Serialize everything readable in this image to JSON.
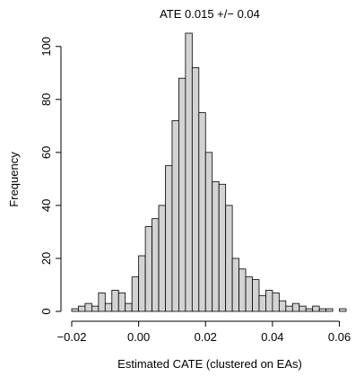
{
  "chart_data": {
    "type": "histogram",
    "title": "ATE 0.015 +/− 0.04",
    "x_label": "Estimated CATE (clustered on EAs)",
    "y_label": "Frequency",
    "bins": [
      -0.02,
      -0.018,
      -0.016,
      -0.014,
      -0.012,
      -0.01,
      -0.008,
      -0.006,
      -0.004,
      -0.002,
      0,
      0.002,
      0.004,
      0.006,
      0.008,
      0.01,
      0.012,
      0.014,
      0.016,
      0.018,
      0.02,
      0.022,
      0.024,
      0.026,
      0.028,
      0.03,
      0.032,
      0.034,
      0.036,
      0.038,
      0.04,
      0.042,
      0.044,
      0.046,
      0.048,
      0.05,
      0.052,
      0.054,
      0.056,
      0.058,
      0.06,
      0.062
    ],
    "values": [
      1,
      2,
      3,
      2,
      7,
      3,
      8,
      7,
      3,
      13,
      21,
      32,
      35,
      40,
      55,
      72,
      88,
      105,
      92,
      75,
      60,
      49,
      48,
      40,
      20,
      16,
      13,
      12,
      6,
      8,
      7,
      4,
      2,
      3,
      2,
      1,
      2,
      1,
      1,
      0,
      1
    ],
    "color": "#d3d3d3",
    "xlim": [
      -0.02,
      0.062
    ],
    "xticks": [
      {
        "value": -0.02,
        "label": "−0.02"
      },
      {
        "value": 0,
        "label": "0.00"
      },
      0.02,
      0.04,
      0.06
    ],
    "ylim": [
      0,
      105
    ],
    "yticks": [
      0,
      20,
      40,
      60,
      80,
      100
    ]
  }
}
